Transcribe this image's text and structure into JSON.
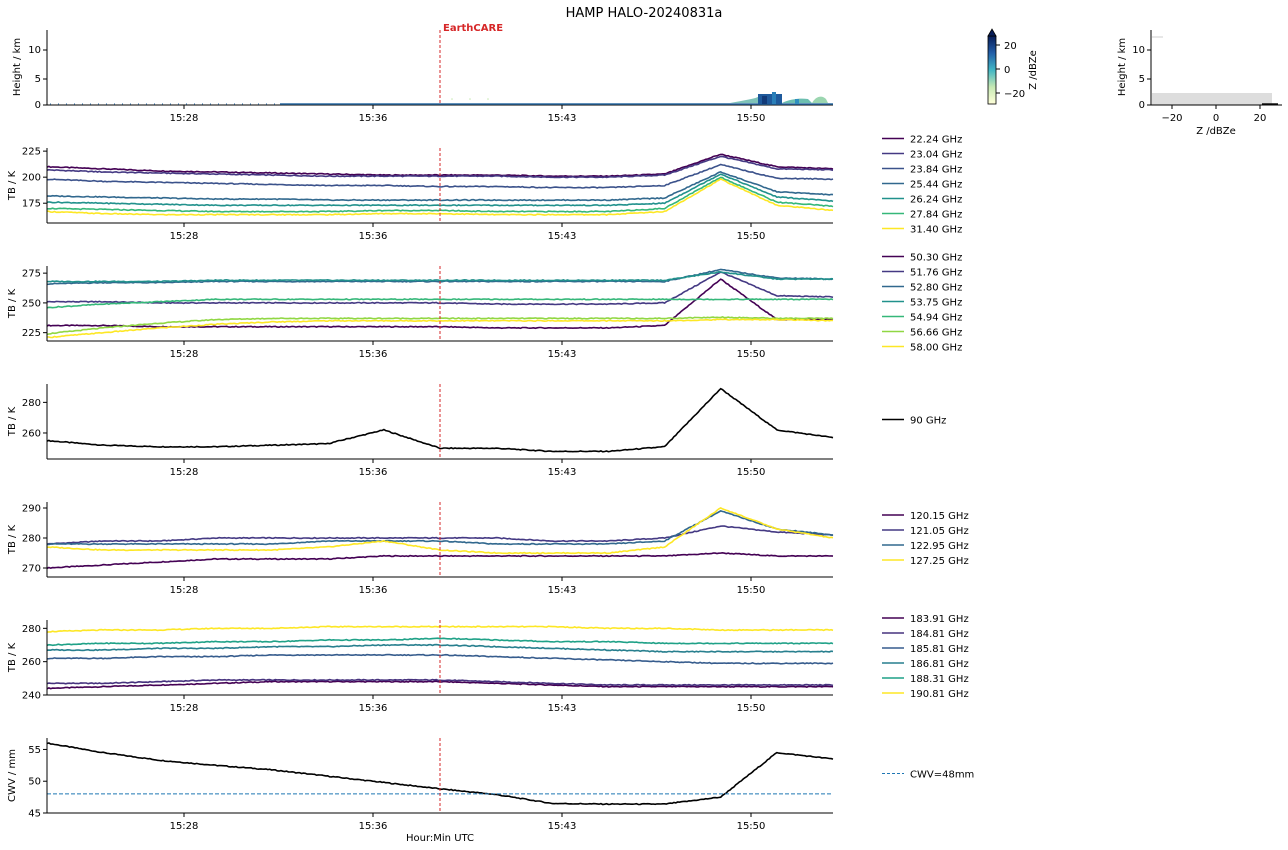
{
  "title": "HAMP HALO-20240831a",
  "xlabel": "Hour:Min UTC",
  "time_ticks": [
    "15:28",
    "15:36",
    "15:43",
    "15:50"
  ],
  "earthcare": {
    "label": "EarthCARE",
    "color": "#d62728"
  },
  "radar": {
    "ylabel": "Height / km",
    "yticks": [
      "0",
      "5",
      "10"
    ],
    "colorbar": {
      "label": "Z /dBZe",
      "ticks": [
        "20",
        "0",
        "−20"
      ],
      "colormap": "YlGnBu"
    },
    "profile": {
      "ylabel": "Height / km",
      "xlabel": "Z /dBZe",
      "xticks": [
        "−20",
        "0",
        "20"
      ],
      "yticks": [
        "0",
        "5",
        "10"
      ]
    }
  },
  "chart_data": [
    {
      "type": "line",
      "id": "k-band",
      "ylabel": "TB / K",
      "ylim": [
        156,
        228
      ],
      "yticks": [
        "175",
        "200",
        "225"
      ],
      "series": [
        {
          "name": "22.24 GHz",
          "color": "#440154",
          "values": [
            210,
            208,
            206,
            205,
            204,
            203,
            202,
            202,
            202,
            201,
            201,
            203,
            222,
            210,
            208
          ]
        },
        {
          "name": "23.04 GHz",
          "color": "#443983",
          "values": [
            207,
            205,
            204,
            203,
            202,
            201,
            201,
            201,
            201,
            200,
            200,
            202,
            220,
            208,
            207
          ]
        },
        {
          "name": "23.84 GHz",
          "color": "#3b528b",
          "values": [
            198,
            196,
            195,
            194,
            193,
            192,
            192,
            191,
            191,
            190,
            190,
            192,
            212,
            199,
            198
          ]
        },
        {
          "name": "25.44 GHz",
          "color": "#31688e",
          "values": [
            182,
            181,
            180,
            179,
            179,
            178,
            178,
            178,
            178,
            178,
            178,
            180,
            205,
            186,
            183
          ]
        },
        {
          "name": "26.24 GHz",
          "color": "#21918c",
          "values": [
            176,
            175,
            174,
            173,
            173,
            173,
            173,
            173,
            173,
            173,
            173,
            175,
            203,
            181,
            177
          ]
        },
        {
          "name": "27.84 GHz",
          "color": "#35b779",
          "values": [
            170,
            169,
            168,
            167,
            167,
            167,
            168,
            168,
            167,
            167,
            167,
            170,
            200,
            176,
            172
          ]
        },
        {
          "name": "31.40 GHz",
          "color": "#fde725",
          "values": [
            167,
            165,
            164,
            164,
            164,
            164,
            165,
            165,
            164,
            164,
            164,
            167,
            198,
            173,
            168
          ]
        }
      ]
    },
    {
      "type": "line",
      "id": "v-band",
      "ylabel": "TB / K",
      "ylim": [
        218,
        281
      ],
      "yticks": [
        "225",
        "250",
        "275"
      ],
      "series": [
        {
          "name": "50.30 GHz",
          "color": "#440154",
          "values": [
            231,
            231,
            230,
            230,
            230,
            230,
            230,
            230,
            229,
            229,
            229,
            231,
            270,
            236,
            236
          ]
        },
        {
          "name": "51.76 GHz",
          "color": "#443983",
          "values": [
            251,
            251,
            250,
            250,
            250,
            250,
            250,
            250,
            249,
            249,
            249,
            250,
            276,
            256,
            255
          ]
        },
        {
          "name": "52.80 GHz",
          "color": "#31688e",
          "values": [
            266,
            267,
            267,
            268,
            268,
            268,
            268,
            268,
            268,
            268,
            268,
            268,
            278,
            271,
            270
          ]
        },
        {
          "name": "53.75 GHz",
          "color": "#21918c",
          "values": [
            268,
            268,
            268,
            269,
            269,
            269,
            269,
            269,
            269,
            269,
            269,
            269,
            276,
            270,
            270
          ]
        },
        {
          "name": "54.94 GHz",
          "color": "#35b779",
          "values": [
            246,
            249,
            251,
            253,
            253,
            253,
            253,
            253,
            253,
            253,
            253,
            253,
            253,
            253,
            253
          ]
        },
        {
          "name": "56.66 GHz",
          "color": "#90d743",
          "values": [
            224,
            229,
            233,
            236,
            237,
            237,
            237,
            237,
            237,
            237,
            237,
            237,
            238,
            237,
            237
          ]
        },
        {
          "name": "58.00 GHz",
          "color": "#fde725",
          "values": [
            221,
            225,
            229,
            232,
            234,
            235,
            235,
            235,
            235,
            235,
            235,
            235,
            236,
            236,
            235
          ]
        }
      ]
    },
    {
      "type": "line",
      "id": "w-band",
      "ylabel": "TB / K",
      "ylim": [
        243,
        292
      ],
      "yticks": [
        "260",
        "280"
      ],
      "series": [
        {
          "name": "90 GHz",
          "color": "#000000",
          "values": [
            255,
            252,
            251,
            251,
            252,
            253,
            262,
            250,
            250,
            248,
            248,
            251,
            289,
            262,
            257
          ]
        }
      ]
    },
    {
      "type": "line",
      "id": "f-band",
      "ylabel": "TB / K",
      "ylim": [
        267,
        292
      ],
      "yticks": [
        "270",
        "280",
        "290"
      ],
      "series": [
        {
          "name": "120.15 GHz",
          "color": "#440154",
          "values": [
            270,
            271,
            272,
            273,
            273,
            273,
            274,
            274,
            274,
            274,
            274,
            274,
            275,
            274,
            274
          ]
        },
        {
          "name": "121.05 GHz",
          "color": "#443983",
          "values": [
            278,
            279,
            279,
            280,
            280,
            280,
            280,
            280,
            280,
            279,
            279,
            280,
            284,
            282,
            281
          ]
        },
        {
          "name": "122.95 GHz",
          "color": "#31688e",
          "values": [
            278,
            278,
            278,
            278,
            278,
            279,
            279,
            279,
            278,
            278,
            278,
            279,
            289,
            283,
            281
          ]
        },
        {
          "name": "127.25 GHz",
          "color": "#fde725",
          "values": [
            277,
            276,
            276,
            276,
            276,
            277,
            279,
            276,
            275,
            275,
            275,
            277,
            290,
            283,
            280
          ]
        }
      ]
    },
    {
      "type": "line",
      "id": "g-band",
      "ylabel": "TB / K",
      "ylim": [
        240,
        285
      ],
      "yticks": [
        "240",
        "260",
        "280"
      ],
      "series": [
        {
          "name": "183.91 GHz",
          "color": "#440154",
          "values": [
            244,
            245,
            246,
            247,
            248,
            248,
            248,
            248,
            247,
            246,
            245,
            245,
            245,
            245,
            245
          ]
        },
        {
          "name": "184.81 GHz",
          "color": "#46327e",
          "values": [
            247,
            247,
            248,
            249,
            249,
            249,
            249,
            249,
            248,
            247,
            246,
            246,
            246,
            246,
            246
          ]
        },
        {
          "name": "185.81 GHz",
          "color": "#365c8d",
          "values": [
            262,
            262,
            263,
            263,
            264,
            264,
            264,
            264,
            263,
            262,
            261,
            260,
            259,
            259,
            259
          ]
        },
        {
          "name": "186.81 GHz",
          "color": "#277f8e",
          "values": [
            267,
            267,
            268,
            268,
            269,
            269,
            270,
            270,
            269,
            268,
            267,
            266,
            266,
            266,
            266
          ]
        },
        {
          "name": "188.31 GHz",
          "color": "#1fa187",
          "values": [
            270,
            271,
            271,
            272,
            272,
            273,
            273,
            274,
            273,
            272,
            272,
            271,
            271,
            271,
            271
          ]
        },
        {
          "name": "190.81 GHz",
          "color": "#fde725",
          "values": [
            278,
            279,
            279,
            280,
            280,
            281,
            281,
            281,
            281,
            281,
            280,
            280,
            279,
            279,
            279
          ]
        }
      ]
    },
    {
      "type": "line",
      "id": "cwv",
      "ylabel": "CWV / mm",
      "ylim": [
        45,
        56.8
      ],
      "yticks": [
        "45",
        "50",
        "55"
      ],
      "series": [
        {
          "name": "",
          "color": "#000000",
          "values": [
            56,
            54.5,
            53.3,
            52.5,
            51.8,
            50.8,
            49.8,
            48.8,
            47.9,
            46.5,
            46.4,
            46.4,
            47.5,
            54.5,
            53.5
          ]
        }
      ],
      "reference": {
        "name": "CWV=48mm",
        "value": 48,
        "color": "#1f77b4"
      }
    }
  ]
}
